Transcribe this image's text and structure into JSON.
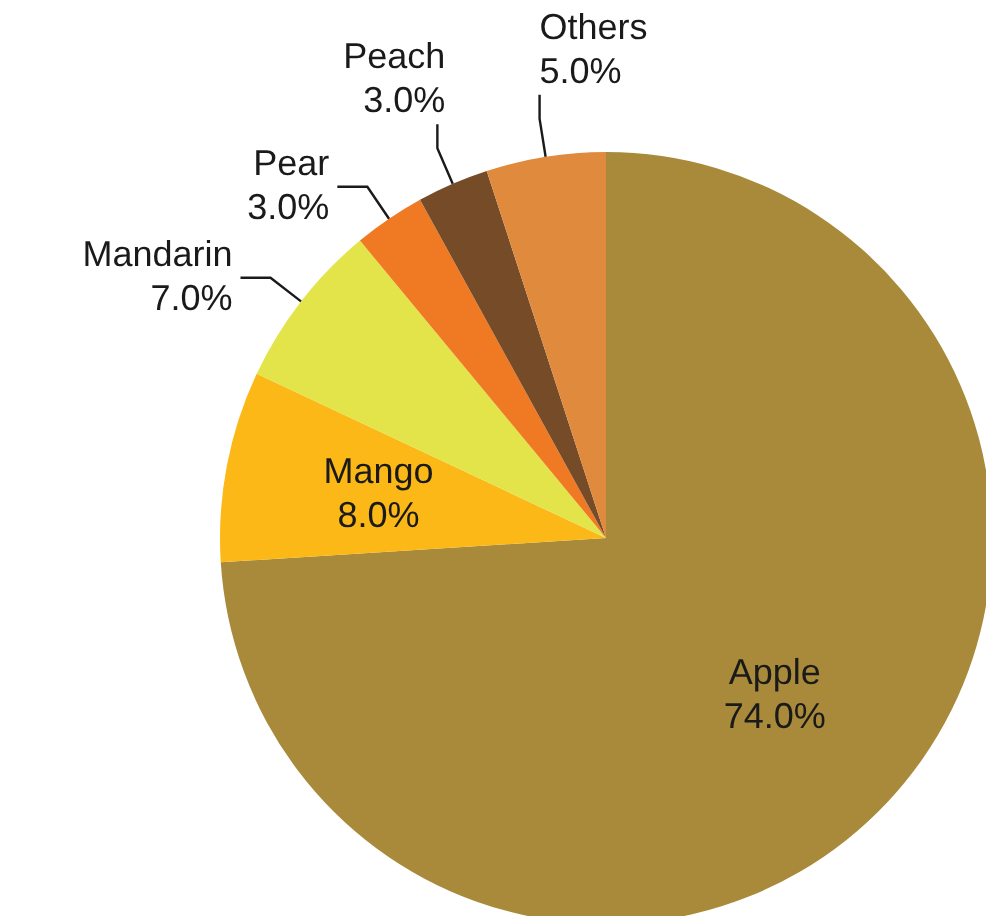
{
  "chart_data": {
    "type": "pie",
    "categories": [
      "Apple",
      "Mango",
      "Mandarin",
      "Pear",
      "Peach",
      "Others"
    ],
    "values": [
      74,
      8,
      7,
      3,
      3,
      5
    ],
    "value_labels": [
      "74.0%",
      "8.0%",
      "7.0%",
      "3.0%",
      "3.0%",
      "5.0%"
    ],
    "colors": [
      "#a88a3a",
      "#fbb817",
      "#e3e34a",
      "#f07a24",
      "#754b28",
      "#e08a3e"
    ],
    "legend": false
  }
}
